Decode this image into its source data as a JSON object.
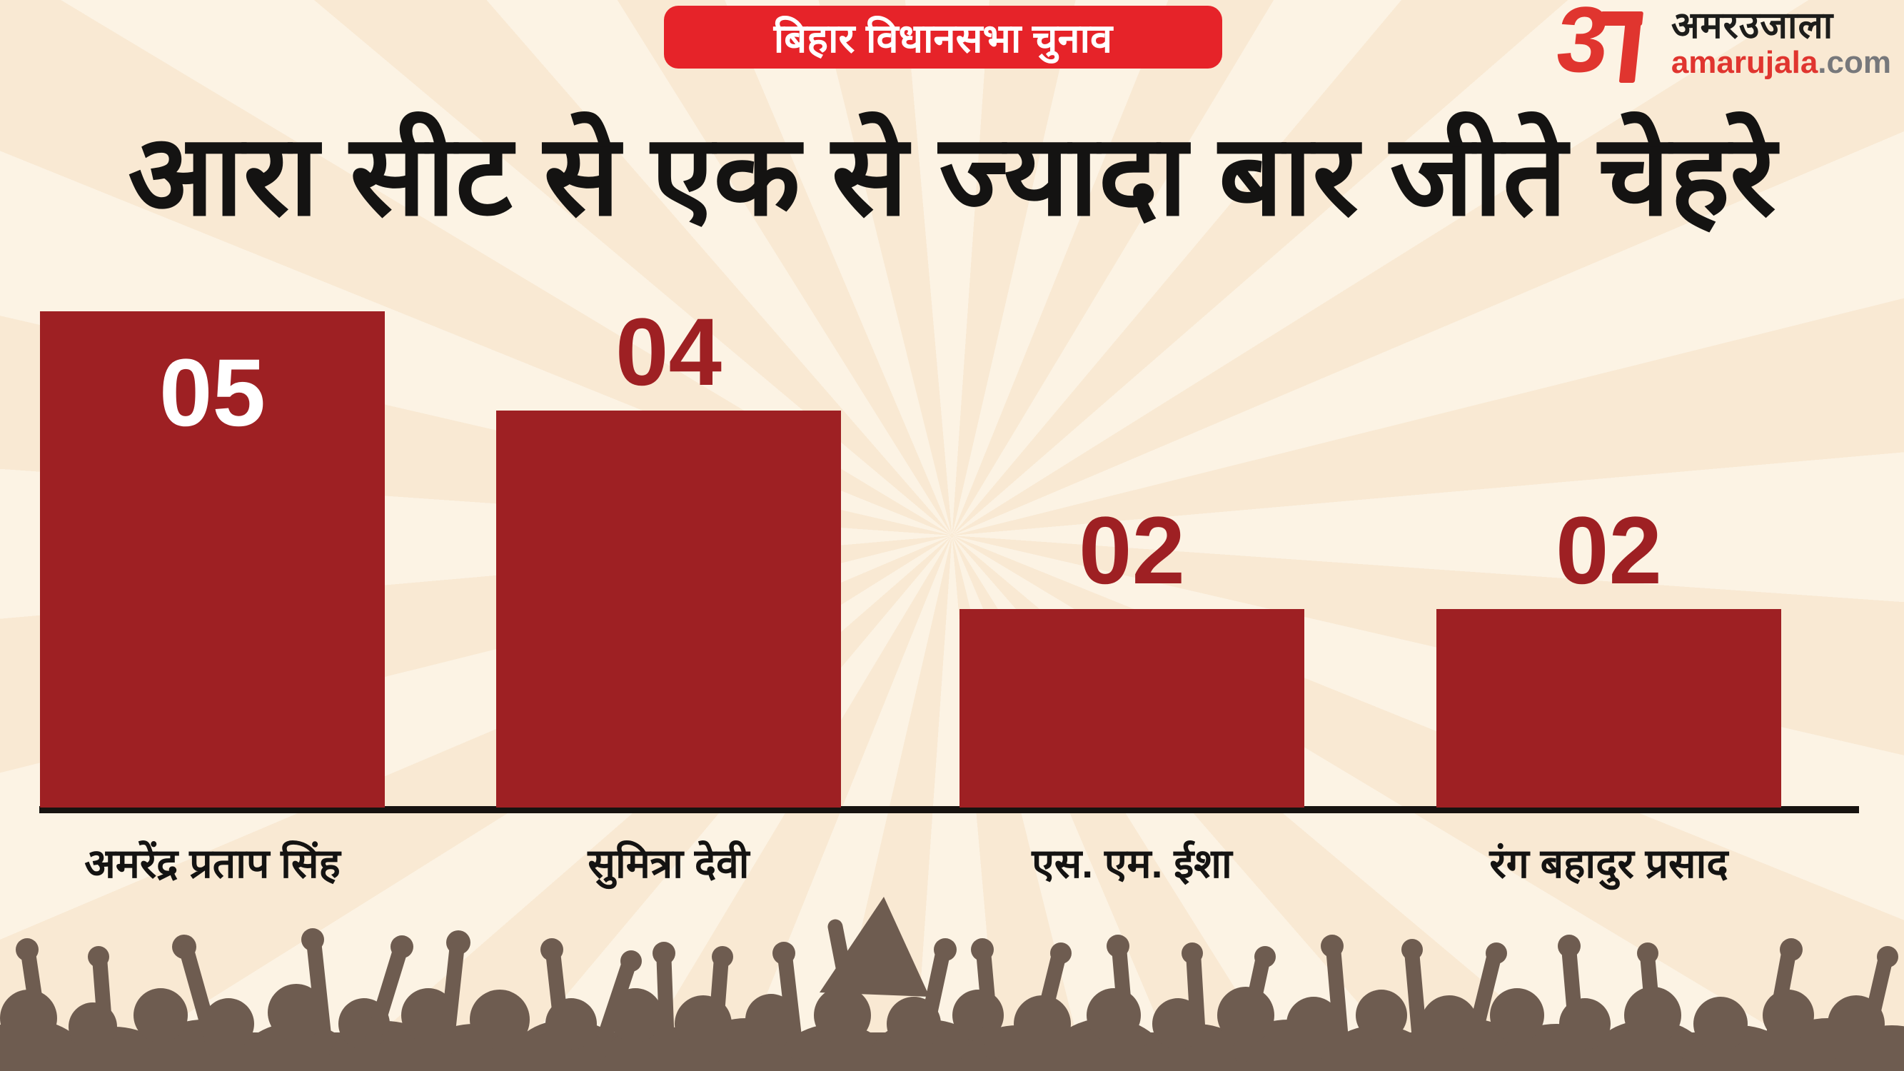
{
  "header": {
    "badge": "बिहार विधानसभा चुनाव",
    "logo": {
      "hindi": "अमरउजाला",
      "domain_red": "amarujala",
      "domain_gray": ".com"
    }
  },
  "chart_data": {
    "type": "bar",
    "title": "आरा सीट से एक से ज्यादा बार जीते चेहरे",
    "categories": [
      "अमरेंद्र प्रताप सिंह",
      "सुमित्रा देवी",
      "एस. एम. ईशा",
      "रंग बहादुर प्रसाद"
    ],
    "values": [
      5,
      4,
      2,
      2
    ],
    "display_values": [
      "05",
      "04",
      "02",
      "02"
    ],
    "xlabel": "",
    "ylabel": "",
    "ylim": [
      0,
      5
    ],
    "grid": false,
    "legend": false,
    "bar_color": "#9e2023",
    "value_label_positions": [
      "inside-top",
      "above",
      "above",
      "above"
    ]
  },
  "colors": {
    "badge_bg": "#e62329",
    "badge_text": "#ffffff",
    "bar": "#9e2023",
    "value_inside": "#ffffff",
    "value_above": "#9e2023",
    "background": "#f9e9d3",
    "ray": "#fcf3e4",
    "axis": "#171310",
    "crowd": "#6e5c50",
    "title_text": "#141312",
    "logo_red": "#e0352f",
    "logo_black": "#1d1d1b",
    "logo_gray": "#77787b"
  }
}
